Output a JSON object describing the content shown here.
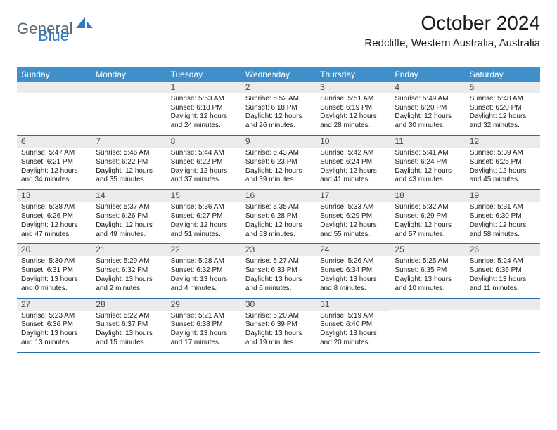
{
  "brand": {
    "general": "General",
    "blue": "Blue",
    "shape_color": "#2f7abf",
    "text_gray": "#5a6670"
  },
  "header": {
    "title": "October 2024",
    "subtitle": "Redcliffe, Western Australia, Australia"
  },
  "colors": {
    "dow_bg": "#3f8fca",
    "dow_text": "#ffffff",
    "daynum_bg": "#ebebeb",
    "rule": "#2f6fa8"
  },
  "dow": [
    "Sunday",
    "Monday",
    "Tuesday",
    "Wednesday",
    "Thursday",
    "Friday",
    "Saturday"
  ],
  "weeks": [
    [
      null,
      null,
      {
        "n": "1",
        "sr": "Sunrise: 5:53 AM",
        "ss": "Sunset: 6:18 PM",
        "d1": "Daylight: 12 hours",
        "d2": "and 24 minutes."
      },
      {
        "n": "2",
        "sr": "Sunrise: 5:52 AM",
        "ss": "Sunset: 6:18 PM",
        "d1": "Daylight: 12 hours",
        "d2": "and 26 minutes."
      },
      {
        "n": "3",
        "sr": "Sunrise: 5:51 AM",
        "ss": "Sunset: 6:19 PM",
        "d1": "Daylight: 12 hours",
        "d2": "and 28 minutes."
      },
      {
        "n": "4",
        "sr": "Sunrise: 5:49 AM",
        "ss": "Sunset: 6:20 PM",
        "d1": "Daylight: 12 hours",
        "d2": "and 30 minutes."
      },
      {
        "n": "5",
        "sr": "Sunrise: 5:48 AM",
        "ss": "Sunset: 6:20 PM",
        "d1": "Daylight: 12 hours",
        "d2": "and 32 minutes."
      }
    ],
    [
      {
        "n": "6",
        "sr": "Sunrise: 5:47 AM",
        "ss": "Sunset: 6:21 PM",
        "d1": "Daylight: 12 hours",
        "d2": "and 34 minutes."
      },
      {
        "n": "7",
        "sr": "Sunrise: 5:46 AM",
        "ss": "Sunset: 6:22 PM",
        "d1": "Daylight: 12 hours",
        "d2": "and 35 minutes."
      },
      {
        "n": "8",
        "sr": "Sunrise: 5:44 AM",
        "ss": "Sunset: 6:22 PM",
        "d1": "Daylight: 12 hours",
        "d2": "and 37 minutes."
      },
      {
        "n": "9",
        "sr": "Sunrise: 5:43 AM",
        "ss": "Sunset: 6:23 PM",
        "d1": "Daylight: 12 hours",
        "d2": "and 39 minutes."
      },
      {
        "n": "10",
        "sr": "Sunrise: 5:42 AM",
        "ss": "Sunset: 6:24 PM",
        "d1": "Daylight: 12 hours",
        "d2": "and 41 minutes."
      },
      {
        "n": "11",
        "sr": "Sunrise: 5:41 AM",
        "ss": "Sunset: 6:24 PM",
        "d1": "Daylight: 12 hours",
        "d2": "and 43 minutes."
      },
      {
        "n": "12",
        "sr": "Sunrise: 5:39 AM",
        "ss": "Sunset: 6:25 PM",
        "d1": "Daylight: 12 hours",
        "d2": "and 45 minutes."
      }
    ],
    [
      {
        "n": "13",
        "sr": "Sunrise: 5:38 AM",
        "ss": "Sunset: 6:26 PM",
        "d1": "Daylight: 12 hours",
        "d2": "and 47 minutes."
      },
      {
        "n": "14",
        "sr": "Sunrise: 5:37 AM",
        "ss": "Sunset: 6:26 PM",
        "d1": "Daylight: 12 hours",
        "d2": "and 49 minutes."
      },
      {
        "n": "15",
        "sr": "Sunrise: 5:36 AM",
        "ss": "Sunset: 6:27 PM",
        "d1": "Daylight: 12 hours",
        "d2": "and 51 minutes."
      },
      {
        "n": "16",
        "sr": "Sunrise: 5:35 AM",
        "ss": "Sunset: 6:28 PM",
        "d1": "Daylight: 12 hours",
        "d2": "and 53 minutes."
      },
      {
        "n": "17",
        "sr": "Sunrise: 5:33 AM",
        "ss": "Sunset: 6:29 PM",
        "d1": "Daylight: 12 hours",
        "d2": "and 55 minutes."
      },
      {
        "n": "18",
        "sr": "Sunrise: 5:32 AM",
        "ss": "Sunset: 6:29 PM",
        "d1": "Daylight: 12 hours",
        "d2": "and 57 minutes."
      },
      {
        "n": "19",
        "sr": "Sunrise: 5:31 AM",
        "ss": "Sunset: 6:30 PM",
        "d1": "Daylight: 12 hours",
        "d2": "and 58 minutes."
      }
    ],
    [
      {
        "n": "20",
        "sr": "Sunrise: 5:30 AM",
        "ss": "Sunset: 6:31 PM",
        "d1": "Daylight: 13 hours",
        "d2": "and 0 minutes."
      },
      {
        "n": "21",
        "sr": "Sunrise: 5:29 AM",
        "ss": "Sunset: 6:32 PM",
        "d1": "Daylight: 13 hours",
        "d2": "and 2 minutes."
      },
      {
        "n": "22",
        "sr": "Sunrise: 5:28 AM",
        "ss": "Sunset: 6:32 PM",
        "d1": "Daylight: 13 hours",
        "d2": "and 4 minutes."
      },
      {
        "n": "23",
        "sr": "Sunrise: 5:27 AM",
        "ss": "Sunset: 6:33 PM",
        "d1": "Daylight: 13 hours",
        "d2": "and 6 minutes."
      },
      {
        "n": "24",
        "sr": "Sunrise: 5:26 AM",
        "ss": "Sunset: 6:34 PM",
        "d1": "Daylight: 13 hours",
        "d2": "and 8 minutes."
      },
      {
        "n": "25",
        "sr": "Sunrise: 5:25 AM",
        "ss": "Sunset: 6:35 PM",
        "d1": "Daylight: 13 hours",
        "d2": "and 10 minutes."
      },
      {
        "n": "26",
        "sr": "Sunrise: 5:24 AM",
        "ss": "Sunset: 6:36 PM",
        "d1": "Daylight: 13 hours",
        "d2": "and 11 minutes."
      }
    ],
    [
      {
        "n": "27",
        "sr": "Sunrise: 5:23 AM",
        "ss": "Sunset: 6:36 PM",
        "d1": "Daylight: 13 hours",
        "d2": "and 13 minutes."
      },
      {
        "n": "28",
        "sr": "Sunrise: 5:22 AM",
        "ss": "Sunset: 6:37 PM",
        "d1": "Daylight: 13 hours",
        "d2": "and 15 minutes."
      },
      {
        "n": "29",
        "sr": "Sunrise: 5:21 AM",
        "ss": "Sunset: 6:38 PM",
        "d1": "Daylight: 13 hours",
        "d2": "and 17 minutes."
      },
      {
        "n": "30",
        "sr": "Sunrise: 5:20 AM",
        "ss": "Sunset: 6:39 PM",
        "d1": "Daylight: 13 hours",
        "d2": "and 19 minutes."
      },
      {
        "n": "31",
        "sr": "Sunrise: 5:19 AM",
        "ss": "Sunset: 6:40 PM",
        "d1": "Daylight: 13 hours",
        "d2": "and 20 minutes."
      },
      null,
      null
    ]
  ]
}
